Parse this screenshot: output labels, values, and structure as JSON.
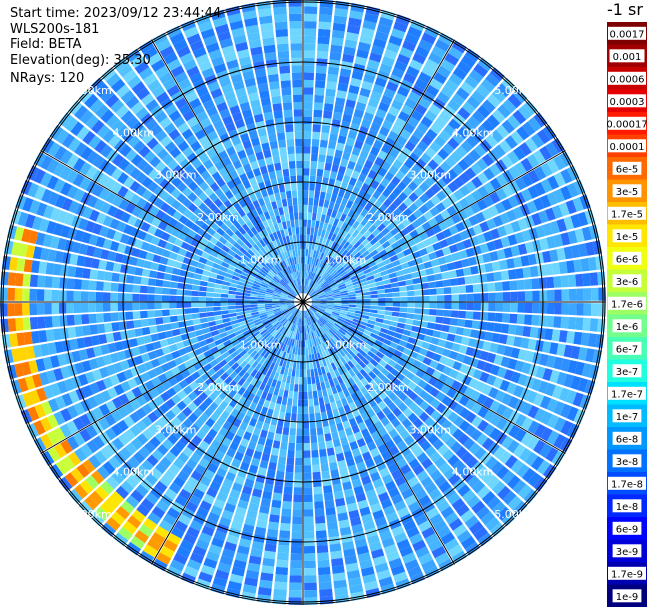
{
  "info": {
    "start_time": "Start time: 2023/09/12 23:44:44",
    "instrument": "WLS200s-181",
    "field": "Field: BETA",
    "elevation": "Elevation(deg): 35.30",
    "nrays": "NRays: 120"
  },
  "colorbar": {
    "unit": "-1 sr",
    "ticks": [
      "0.0017",
      "0.001",
      "0.0006",
      "0.0003",
      "0.00017",
      "0.0001",
      "6e-5",
      "3e-5",
      "1.7e-5",
      "1e-5",
      "6e-6",
      "3e-6",
      "1.7e-6",
      "1e-6",
      "6e-7",
      "3e-7",
      "1.7e-7",
      "1e-7",
      "6e-8",
      "3e-8",
      "1.7e-8",
      "1e-8",
      "6e-9",
      "3e-9",
      "1.7e-9",
      "1e-9"
    ],
    "colors": [
      "#7f0000",
      "#a00000",
      "#c80000",
      "#e60000",
      "#ff1a00",
      "#ff4000",
      "#ff6a00",
      "#ff9400",
      "#ffbd00",
      "#ffe600",
      "#f0ff10",
      "#c5ff39",
      "#9cff63",
      "#73ff8c",
      "#49ffb6",
      "#20ffe0",
      "#00e0ff",
      "#00bbff",
      "#0096ff",
      "#0072ff",
      "#004dff",
      "#0028ff",
      "#0004ff",
      "#0000d8",
      "#0000b0",
      "#00007f"
    ]
  },
  "chart_data": {
    "type": "heatmap",
    "projection": "polar PPI",
    "field": "BETA",
    "units": "-1 sr",
    "n_rays": 120,
    "ring_labels": [
      "1.00km",
      "2.00km",
      "3.00km",
      "4.00km",
      "5.00km"
    ],
    "rings_km": [
      1,
      2,
      3,
      4,
      5
    ],
    "max_range_km": 5.0,
    "background_level": "1e-7",
    "strong_return_sector": "west",
    "strong_return_range_km": [
      4.6,
      4.9
    ],
    "strong_return_level": "1e-5"
  }
}
